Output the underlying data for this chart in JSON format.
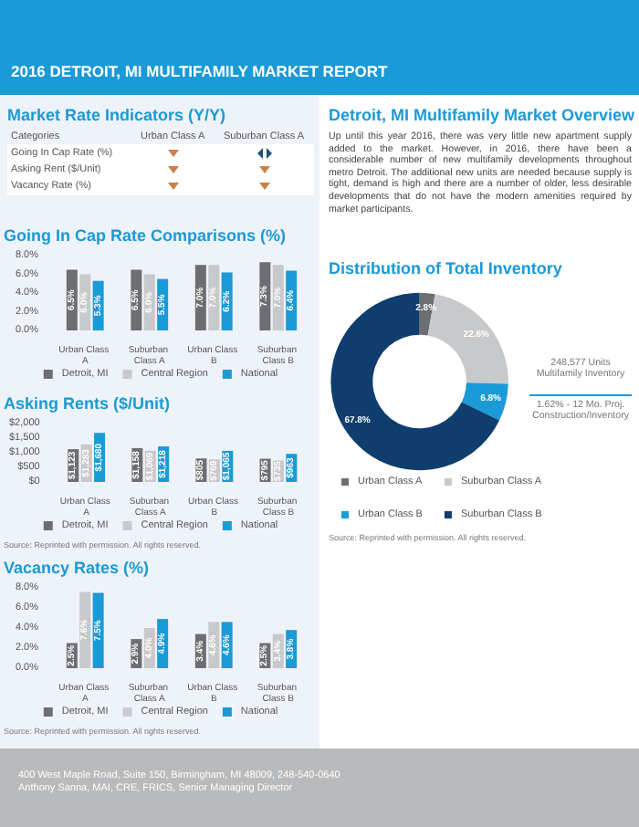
{
  "chart_data": [
    {
      "type": "other",
      "title": "2016 DETROIT, MI MULTIFAMILY MARKET REPORT"
    },
    {
      "type": "other",
      "title": "Market Rate Indicators (Y/Y)",
      "annotations": [
        "Categories",
        "Urban Class A",
        "Suburban Class A",
        "Going In Cap Rate (%)",
        "Asking Rent ($/Unit)",
        "Vacancy Rate (%)"
      ]
    },
    {
      "type": "other",
      "title": "Detroit, MI Multifamily Market Overview",
      "annotations": [
        "Up until this year 2016, there was very little new apartment supply added to the market. However, in 2016, there have been a considerable number of new multifamily developments throughout metro Detroit. The additional new units are needed because supply is tight, demand is high and there are a number of older, less desirable developments that do not have the modern amenities required by market participants."
      ]
    },
    {
      "type": "bar",
      "title": "Going In Cap Rate Comparisons (%)",
      "categories": [
        "Urban Class A",
        "Suburban Class A",
        "Urban Class B",
        "Suburban Class B"
      ],
      "ylim": [
        0,
        8
      ],
      "yticks": [
        {
          "value": 0,
          "label": "0.0%"
        },
        {
          "value": 2,
          "label": "2.0%"
        },
        {
          "value": 4,
          "label": "4.0%"
        },
        {
          "value": 6,
          "label": "6.0%"
        },
        {
          "value": 8,
          "label": "8.0%"
        }
      ],
      "legend": "bottom",
      "series": [
        {
          "name": "Detroit, MI",
          "color": "#6d6e71",
          "values": [
            6.5,
            6.5,
            7.0,
            7.3
          ],
          "value_labels": [
            "6.5%",
            "6.5%",
            "7.0%",
            "7.3%"
          ]
        },
        {
          "name": "Central Region",
          "color": "#c8c9cb",
          "values": [
            6.0,
            6.0,
            7.0,
            7.0
          ],
          "value_labels": [
            "6.0%",
            "6.0%",
            "7.0%",
            "7.0%"
          ]
        },
        {
          "name": "National",
          "color": "#1a9ad6",
          "values": [
            5.3,
            5.5,
            6.2,
            6.4
          ],
          "value_labels": [
            "5.3%",
            "5.5%",
            "6.2%",
            "6.4%"
          ]
        }
      ]
    },
    {
      "type": "donut",
      "title": "Distribution of Total Inventory",
      "categories": [
        "Urban Class A",
        "Suburban Class A",
        "Urban Class B",
        "Suburban Class B"
      ],
      "values": [
        2.8,
        22.6,
        6.8,
        67.8
      ],
      "value_labels": [
        "2.8%",
        "22.6%",
        "6.8%",
        "67.8%"
      ],
      "colors": [
        "#6d6e71",
        "#c8c9cb",
        "#1a9ad6",
        "#0f3d6e"
      ],
      "legend": "bottom",
      "annotations": [
        "248,577 Units Multifamily Inventory",
        "1.62% - 12 Mo. Proj. Construction/Inventory",
        "Source: Reprinted with permission. All rights reserved."
      ]
    },
    {
      "type": "bar",
      "title": "Asking Rents ($/Unit)",
      "categories": [
        "Urban Class A",
        "Suburban Class A",
        "Urban Class B",
        "Suburban Class B"
      ],
      "ylim": [
        0,
        2000
      ],
      "yticks": [
        {
          "value": 0,
          "label": "$0"
        },
        {
          "value": 500,
          "label": "$500"
        },
        {
          "value": 1000,
          "label": "$1,000"
        },
        {
          "value": 1500,
          "label": "$1,500"
        },
        {
          "value": 2000,
          "label": "$2,000"
        }
      ],
      "legend": "bottom",
      "annotations": [
        "Source: Reprinted with permission. All rights reserved."
      ],
      "series": [
        {
          "name": "Detroit, MI",
          "color": "#6d6e71",
          "values": [
            1123,
            1158,
            805,
            795
          ],
          "value_labels": [
            "$1,123",
            "$1,158",
            "$805",
            "$795"
          ]
        },
        {
          "name": "Central Region",
          "color": "#c8c9cb",
          "values": [
            1283,
            1069,
            769,
            735
          ],
          "value_labels": [
            "$1,283",
            "$1,069",
            "$769",
            "$735"
          ]
        },
        {
          "name": "National",
          "color": "#1a9ad6",
          "values": [
            1680,
            1218,
            1065,
            963
          ],
          "value_labels": [
            "$1,680",
            "$1,218",
            "$1,065",
            "$963"
          ]
        }
      ]
    },
    {
      "type": "bar",
      "title": "Vacancy Rates (%)",
      "categories": [
        "Urban Class A",
        "Suburban Class A",
        "Urban Class B",
        "Suburban Class B"
      ],
      "ylim": [
        0,
        8
      ],
      "yticks": [
        {
          "value": 0,
          "label": "0.0%"
        },
        {
          "value": 2,
          "label": "2.0%"
        },
        {
          "value": 4,
          "label": "4.0%"
        },
        {
          "value": 6,
          "label": "6.0%"
        },
        {
          "value": 8,
          "label": "8.0%"
        }
      ],
      "legend": "bottom",
      "annotations": [
        "Source: Reprinted with permission. All rights reserved."
      ],
      "series": [
        {
          "name": "Detroit, MI",
          "color": "#6d6e71",
          "values": [
            2.5,
            2.9,
            3.4,
            2.5
          ],
          "value_labels": [
            "2.5%",
            "2.9%",
            "3.4%",
            "2.5%"
          ]
        },
        {
          "name": "Central Region",
          "color": "#c8c9cb",
          "values": [
            7.6,
            4.0,
            4.6,
            3.4
          ],
          "value_labels": [
            "7.6%",
            "4.0%",
            "4.6%",
            "3.4%"
          ]
        },
        {
          "name": "National",
          "color": "#1a9ad6",
          "values": [
            7.5,
            4.9,
            4.6,
            3.8
          ],
          "value_labels": [
            "7.5%",
            "4.9%",
            "4.6%",
            "3.8%"
          ]
        }
      ]
    },
    {
      "type": "other",
      "annotations": [
        "400 West Maple Road, Suite 150, Birmingham, MI 48009, 248-540-0640",
        "Anthony Sanna, MAI, CRE, FRICS, Senior Managing Director"
      ]
    }
  ]
}
